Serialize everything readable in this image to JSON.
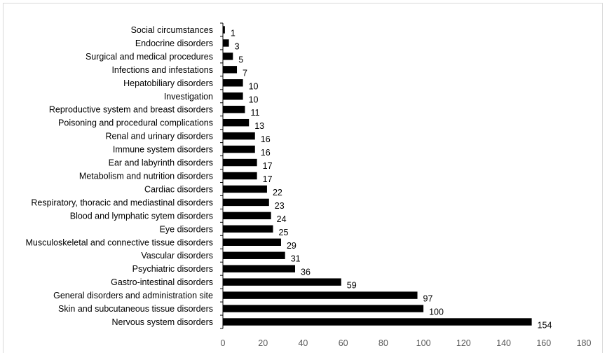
{
  "chart_data": {
    "type": "bar",
    "orientation": "horizontal",
    "categories": [
      "Social circumstances",
      "Endocrine disorders",
      "Surgical and medical procedures",
      "Infections and  infestations",
      "Hepatobiliary disorders",
      "Investigation",
      "Reproductive system and breast disorders",
      "Poisoning and procedural complications",
      "Renal and urinary disorders",
      "Immune system disorders",
      "Ear and labyrinth disorders",
      "Metabolism and  nutrition disorders",
      "Cardiac disorders",
      "Respiratory, thoracic and mediastinal disorders",
      "Blood and lymphatic sytem disorders",
      "Eye disorders",
      "Musculoskeletal and connective tissue disorders",
      "Vascular disorders",
      "Psychiatric disorders",
      "Gastro-intestinal disorders",
      "General disorders and administration  site",
      "Skin and subcutaneous tissue disorders",
      "Nervous system disorders"
    ],
    "values": [
      1,
      3,
      5,
      7,
      10,
      10,
      11,
      13,
      16,
      16,
      17,
      17,
      22,
      23,
      24,
      25,
      29,
      31,
      36,
      59,
      97,
      100,
      154
    ],
    "xlim": [
      0,
      180
    ],
    "xticks": [
      0,
      20,
      40,
      60,
      80,
      100,
      120,
      140,
      160,
      180
    ],
    "data_labels": true,
    "grid": false,
    "bar_color": "#000000",
    "title": "",
    "xlabel": "",
    "ylabel": ""
  }
}
